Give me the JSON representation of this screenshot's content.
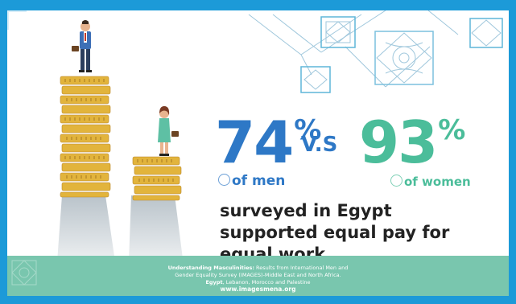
{
  "stat_men": {
    "value": "74",
    "sign": "%",
    "label": "of men"
  },
  "connector": "V.S",
  "stat_women": {
    "value": "93",
    "sign": "%",
    "label": "of women"
  },
  "statement": "surveyed in Egypt supported equal pay for equal work.",
  "source": {
    "title": "Understanding Masculinities:",
    "line1_rest": " Results from International Men and",
    "line2": "Gender Equality Survey (IMAGES)-Middle East and North Africa.",
    "line3_bold": "Egypt",
    "line3_rest": ", Lebanon, Morocco and Palestine",
    "website": "www.imagesmena.org"
  },
  "colors": {
    "frame": "#1c9ad8",
    "men": "#2e78c6",
    "women": "#4bbd9a",
    "footer": "#79c6ae",
    "coin": "#e2b43c"
  },
  "icons": {
    "men_bullet": "person-circle-icon",
    "women_bullet": "person-circle-icon"
  }
}
